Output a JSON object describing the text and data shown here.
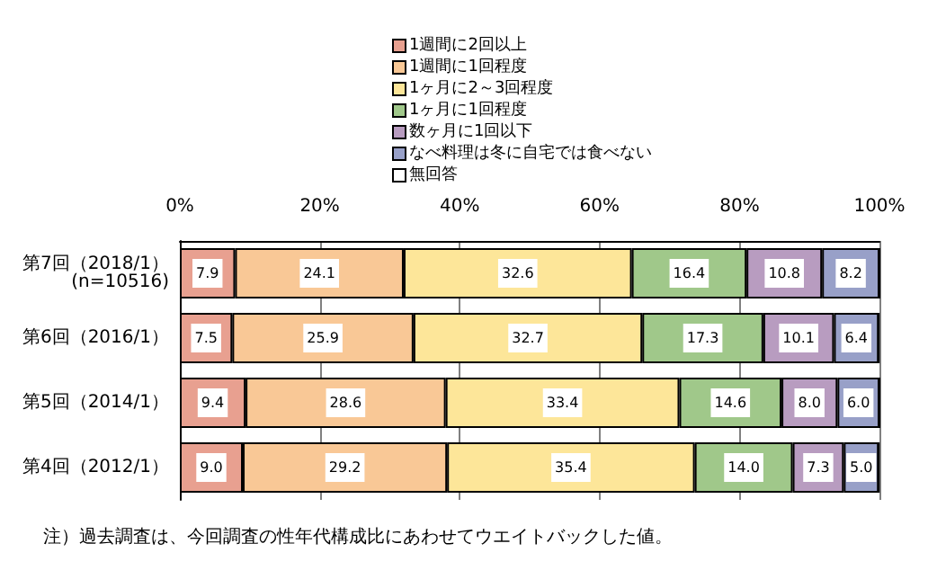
{
  "chart_data": {
    "type": "bar",
    "orientation": "horizontal",
    "stacked": true,
    "categories": [
      "第7回（2018/1）\n(n=10516)",
      "第6回（2016/1）",
      "第5回（2014/1）",
      "第4回（2012/1）"
    ],
    "series": [
      {
        "name": "1週間に2回以上",
        "color": "#e8a090",
        "values": [
          7.9,
          7.5,
          9.4,
          9.0
        ],
        "value_labels": [
          "7.9",
          "7.5",
          "9.4",
          "9.0"
        ]
      },
      {
        "name": "1週間に1回程度",
        "color": "#f9c896",
        "values": [
          24.1,
          25.9,
          28.6,
          29.2
        ],
        "value_labels": [
          "24.1",
          "25.9",
          "28.6",
          "29.2"
        ]
      },
      {
        "name": "1ヶ月に2～3回程度",
        "color": "#fde699",
        "values": [
          32.6,
          32.7,
          33.4,
          35.4
        ],
        "value_labels": [
          "32.6",
          "32.7",
          "33.4",
          "35.4"
        ]
      },
      {
        "name": "1ヶ月に1回程度",
        "color": "#a0c88a",
        "values": [
          16.4,
          17.3,
          14.6,
          14.0
        ],
        "value_labels": [
          "16.4",
          "17.3",
          "14.6",
          "14.0"
        ]
      },
      {
        "name": "数ヶ月に1回以下",
        "color": "#b89cc0",
        "values": [
          10.8,
          10.1,
          8.0,
          7.3
        ],
        "value_labels": [
          "10.8",
          "10.1",
          "8.0",
          "7.3"
        ]
      },
      {
        "name": "なべ料理は冬に自宅では食べない",
        "color": "#98a0c8",
        "values": [
          8.2,
          6.4,
          6.0,
          5.0
        ],
        "value_labels": [
          "8.2",
          "6.4",
          "6.0",
          "5.0"
        ]
      },
      {
        "name": "無回答",
        "color": "#ffffff",
        "values": [
          0,
          0,
          0,
          0
        ],
        "value_labels": [
          null,
          null,
          null,
          null
        ]
      }
    ],
    "xlim": [
      0,
      100
    ],
    "xticks": [
      {
        "value": 0,
        "label": "0%"
      },
      {
        "value": 20,
        "label": "20%"
      },
      {
        "value": 40,
        "label": "40%"
      },
      {
        "value": 60,
        "label": "60%"
      },
      {
        "value": 80,
        "label": "80%"
      },
      {
        "value": 100,
        "label": "100%"
      }
    ],
    "grid": "x",
    "legend": "top",
    "annotations": [
      "注）過去調査は、今回調査の性年代構成比にあわせてウエイトバックした値。"
    ]
  }
}
